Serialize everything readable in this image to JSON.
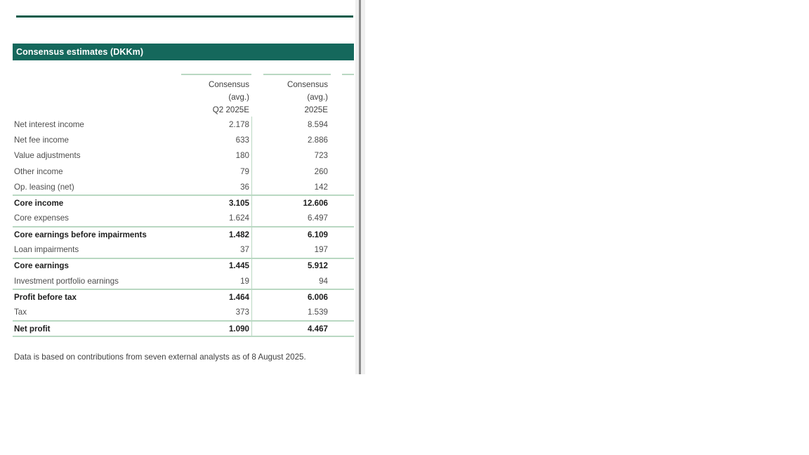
{
  "title_bar": {
    "label": "Consensus estimates (DKKm)"
  },
  "table": {
    "columns": [
      {
        "line1": "Consensus",
        "line2": "(avg.)",
        "line3": "Q2 2025E"
      },
      {
        "line1": "Consensus",
        "line2": "(avg.)",
        "line3": "2025E"
      }
    ],
    "rows": [
      {
        "label": "Net interest income",
        "q2": "2.178",
        "fy": "8.594",
        "bold": false
      },
      {
        "label": "Net fee income",
        "q2": "633",
        "fy": "2.886",
        "bold": false
      },
      {
        "label": "Value adjustments",
        "q2": "180",
        "fy": "723",
        "bold": false
      },
      {
        "label": "Other income",
        "q2": "79",
        "fy": "260",
        "bold": false
      },
      {
        "label": "Op. leasing (net)",
        "q2": "36",
        "fy": "142",
        "bold": false
      },
      {
        "label": "Core income",
        "q2": "3.105",
        "fy": "12.606",
        "bold": true
      },
      {
        "label": "Core expenses",
        "q2": "1.624",
        "fy": "6.497",
        "bold": false
      },
      {
        "label": "Core earnings before impairments",
        "q2": "1.482",
        "fy": "6.109",
        "bold": true
      },
      {
        "label": "Loan impairments",
        "q2": "37",
        "fy": "197",
        "bold": false
      },
      {
        "label": "Core earnings",
        "q2": "1.445",
        "fy": "5.912",
        "bold": true
      },
      {
        "label": "Investment portfolio earnings",
        "q2": "19",
        "fy": "94",
        "bold": false
      },
      {
        "label": "Profit before tax",
        "q2": "1.464",
        "fy": "6.006",
        "bold": true
      },
      {
        "label": "Tax",
        "q2": "373",
        "fy": "1.539",
        "bold": false
      },
      {
        "label": "Net profit",
        "q2": "1.090",
        "fy": "4.467",
        "bold": true
      }
    ]
  },
  "footnote": {
    "text": "Data is based on contributions from seven external analysts as of 8 August 2025."
  },
  "colors": {
    "title_bar_bg": "#15685c",
    "top_rule": "#0a5b4a",
    "table_line_green": "#b9d8c2",
    "body_text": "#4d4d4d",
    "bold_text": "#1d1d1d",
    "divider_band": "#efefef",
    "divider_line": "#8d8d8d"
  }
}
